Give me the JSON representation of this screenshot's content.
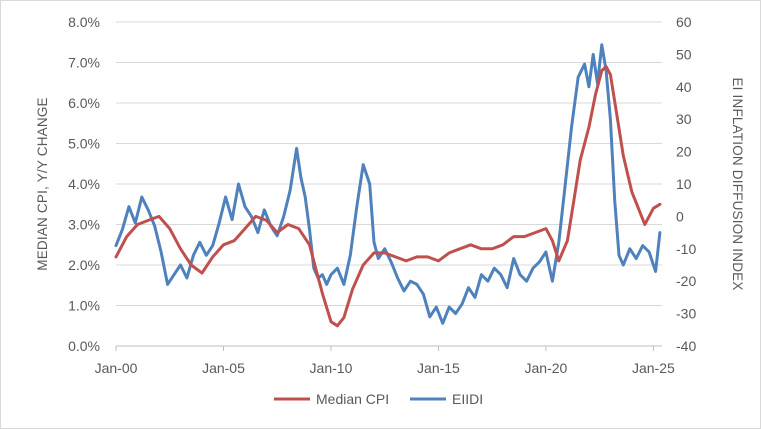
{
  "chart_data": {
    "type": "line",
    "title": "",
    "xlabel": "",
    "ylabel": "MEDIAN CPI, Y/Y CHANGE",
    "y2label": "EI INFLATION DIFFUSION INDEX",
    "x_tick_labels": [
      "Jan-00",
      "Jan-05",
      "Jan-10",
      "Jan-15",
      "Jan-20",
      "Jan-25"
    ],
    "x_tick_years": [
      2000,
      2005,
      2010,
      2015,
      2020,
      2025
    ],
    "xlim": [
      2000,
      2025.4
    ],
    "ylim": [
      0,
      8
    ],
    "y_tick_labels": [
      "0.0%",
      "1.0%",
      "2.0%",
      "3.0%",
      "4.0%",
      "5.0%",
      "6.0%",
      "7.0%",
      "8.0%"
    ],
    "y_ticks": [
      0,
      1,
      2,
      3,
      4,
      5,
      6,
      7,
      8
    ],
    "y2lim": [
      -40,
      60
    ],
    "y2_tick_labels": [
      "-40",
      "-30",
      "-20",
      "-10",
      "0",
      "10",
      "20",
      "30",
      "40",
      "50",
      "60"
    ],
    "y2_ticks": [
      -40,
      -30,
      -20,
      -10,
      0,
      10,
      20,
      30,
      40,
      50,
      60
    ],
    "grid": "horizontal",
    "legend_position": "bottom",
    "series": [
      {
        "name": "Median CPI",
        "axis": "left",
        "color": "#c0504d",
        "x": [
          2000.0,
          2000.5,
          2001.0,
          2001.5,
          2002.0,
          2002.5,
          2003.0,
          2003.5,
          2004.0,
          2004.5,
          2005.0,
          2005.5,
          2006.0,
          2006.5,
          2007.0,
          2007.5,
          2008.0,
          2008.5,
          2009.0,
          2009.3,
          2009.6,
          2010.0,
          2010.3,
          2010.6,
          2011.0,
          2011.5,
          2012.0,
          2012.5,
          2013.0,
          2013.5,
          2014.0,
          2014.5,
          2015.0,
          2015.5,
          2016.0,
          2016.5,
          2017.0,
          2017.5,
          2018.0,
          2018.5,
          2019.0,
          2019.5,
          2020.0,
          2020.3,
          2020.6,
          2021.0,
          2021.3,
          2021.6,
          2022.0,
          2022.3,
          2022.6,
          2022.8,
          2023.0,
          2023.3,
          2023.6,
          2024.0,
          2024.3,
          2024.6,
          2025.0,
          2025.3
        ],
        "values": [
          2.2,
          2.7,
          3.0,
          3.1,
          3.2,
          2.9,
          2.4,
          2.0,
          1.8,
          2.2,
          2.5,
          2.6,
          2.9,
          3.2,
          3.1,
          2.8,
          3.0,
          2.9,
          2.5,
          1.9,
          1.3,
          0.6,
          0.5,
          0.7,
          1.4,
          2.0,
          2.3,
          2.3,
          2.2,
          2.1,
          2.2,
          2.2,
          2.1,
          2.3,
          2.4,
          2.5,
          2.4,
          2.4,
          2.5,
          2.7,
          2.7,
          2.8,
          2.9,
          2.6,
          2.1,
          2.6,
          3.6,
          4.6,
          5.4,
          6.2,
          6.8,
          6.9,
          6.7,
          5.7,
          4.7,
          3.8,
          3.4,
          3.0,
          3.4,
          3.5
        ]
      },
      {
        "name": "EIIDI",
        "axis": "right",
        "color": "#4f81bd",
        "x": [
          2000.0,
          2000.3,
          2000.6,
          2000.9,
          2001.2,
          2001.5,
          2001.8,
          2002.1,
          2002.4,
          2002.7,
          2003.0,
          2003.3,
          2003.6,
          2003.9,
          2004.2,
          2004.5,
          2004.8,
          2005.1,
          2005.4,
          2005.7,
          2006.0,
          2006.3,
          2006.6,
          2006.9,
          2007.2,
          2007.5,
          2007.8,
          2008.1,
          2008.4,
          2008.6,
          2008.8,
          2009.0,
          2009.2,
          2009.4,
          2009.6,
          2009.8,
          2010.0,
          2010.3,
          2010.6,
          2010.9,
          2011.2,
          2011.5,
          2011.8,
          2012.0,
          2012.2,
          2012.5,
          2012.8,
          2013.1,
          2013.4,
          2013.7,
          2014.0,
          2014.3,
          2014.6,
          2014.9,
          2015.2,
          2015.5,
          2015.8,
          2016.1,
          2016.4,
          2016.7,
          2017.0,
          2017.3,
          2017.6,
          2017.9,
          2018.2,
          2018.5,
          2018.8,
          2019.1,
          2019.4,
          2019.7,
          2020.0,
          2020.3,
          2020.6,
          2020.9,
          2021.2,
          2021.5,
          2021.8,
          2022.0,
          2022.2,
          2022.4,
          2022.6,
          2022.8,
          2023.0,
          2023.2,
          2023.4,
          2023.6,
          2023.9,
          2024.2,
          2024.5,
          2024.8,
          2025.1,
          2025.3
        ],
        "values": [
          -9,
          -4,
          3,
          -2,
          6,
          2,
          -3,
          -11,
          -21,
          -18,
          -15,
          -19,
          -12,
          -8,
          -12,
          -9,
          -2,
          6,
          -1,
          10,
          3,
          0,
          -5,
          2,
          -3,
          -6,
          0,
          8,
          21,
          12,
          6,
          -4,
          -16,
          -19,
          -18,
          -21,
          -18,
          -16,
          -21,
          -12,
          3,
          16,
          10,
          -8,
          -13,
          -10,
          -14,
          -19,
          -23,
          -20,
          -21,
          -24,
          -31,
          -28,
          -33,
          -28,
          -30,
          -27,
          -22,
          -25,
          -18,
          -20,
          -16,
          -18,
          -22,
          -13,
          -18,
          -20,
          -16,
          -14,
          -11,
          -20,
          -8,
          10,
          28,
          43,
          47,
          40,
          50,
          41,
          53,
          45,
          30,
          5,
          -12,
          -15,
          -10,
          -13,
          -9,
          -11,
          -17,
          -5
        ]
      }
    ]
  }
}
